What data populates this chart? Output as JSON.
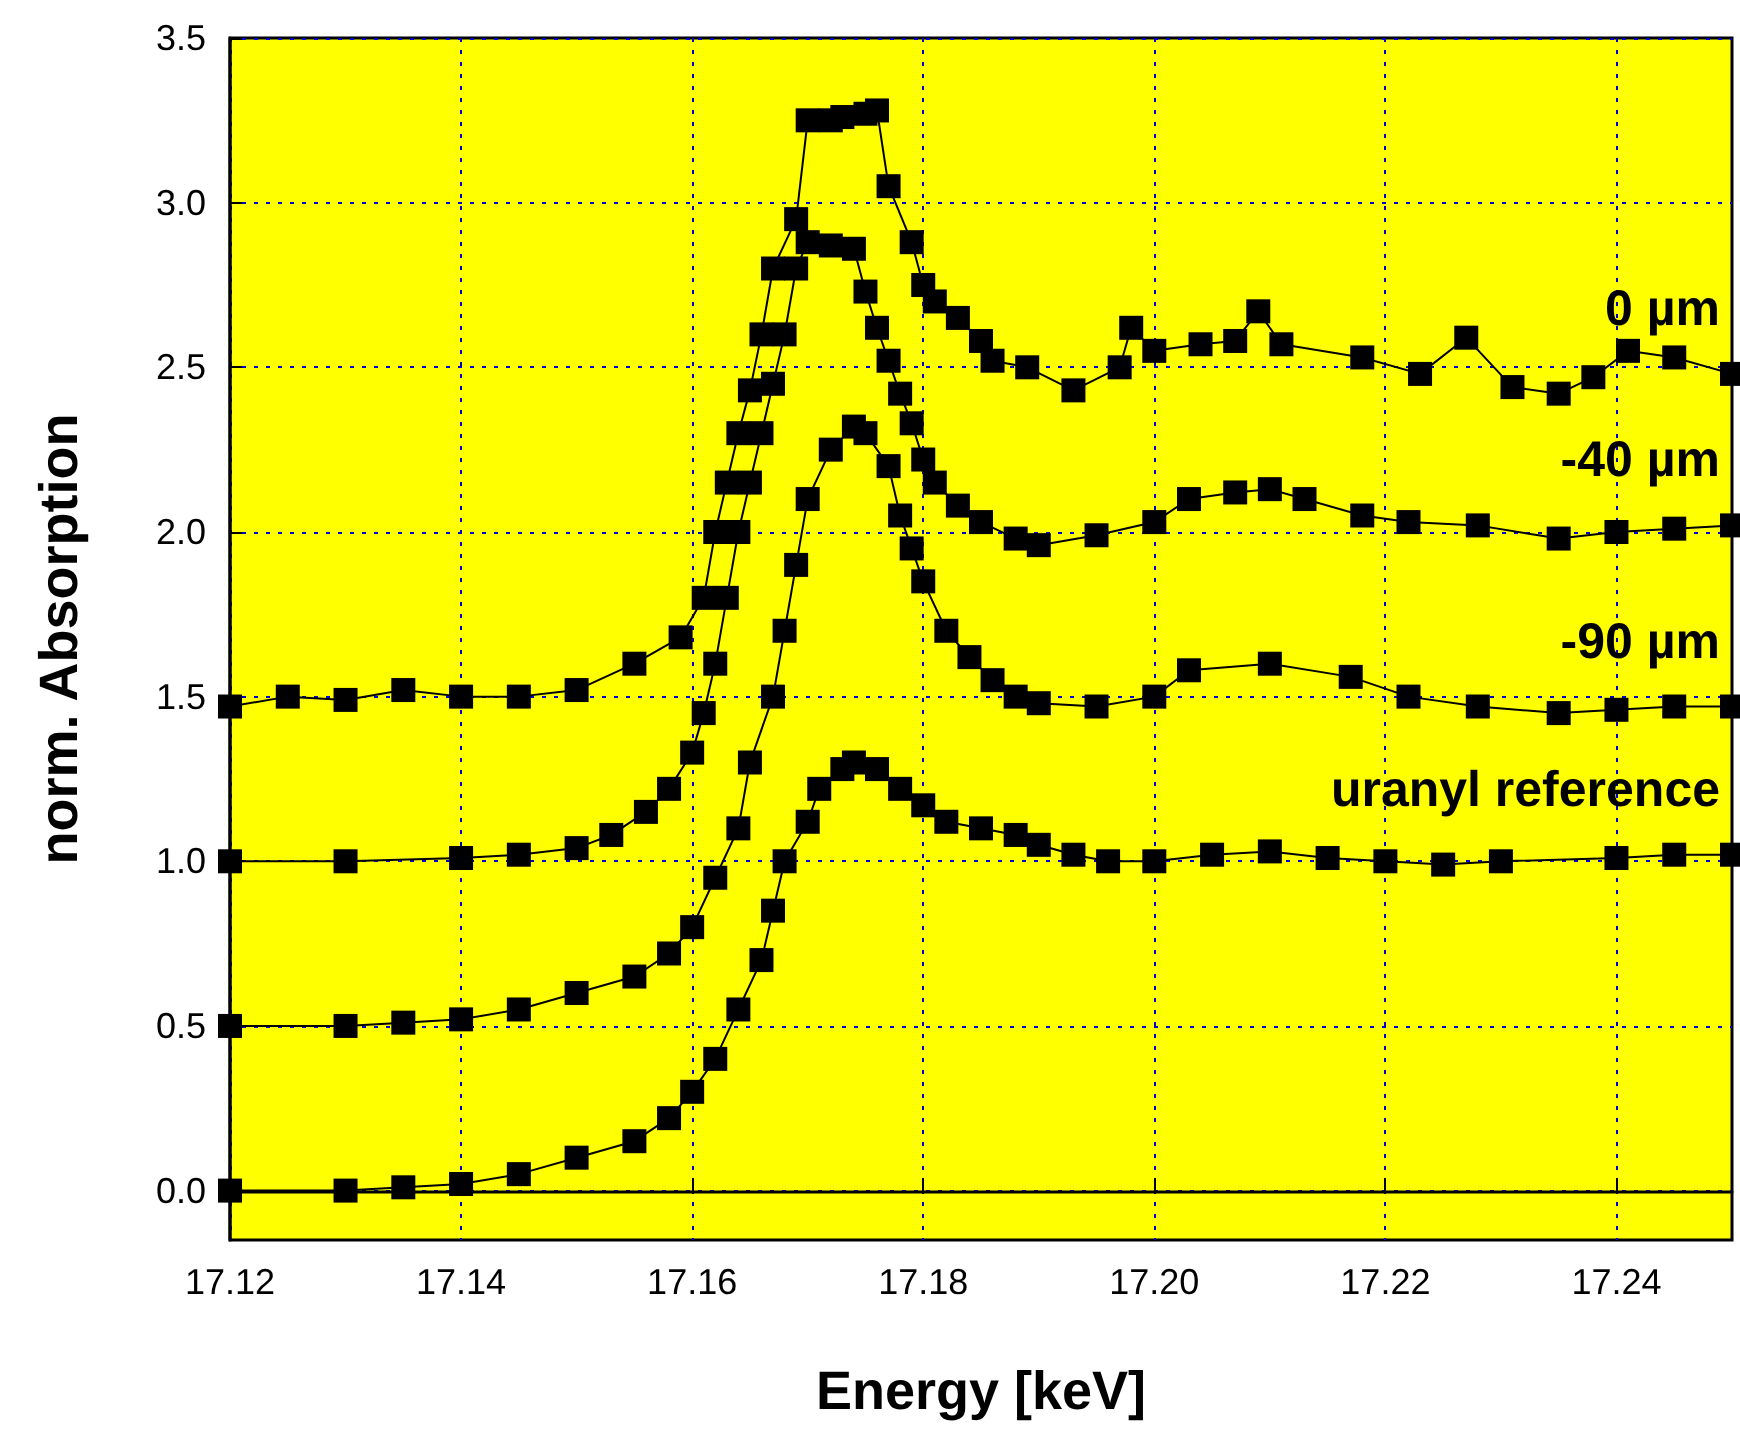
{
  "chart_data": {
    "type": "line",
    "xlabel": "Energy [keV]",
    "ylabel": "norm. Absorption",
    "xlim": [
      17.12,
      17.25
    ],
    "ylim": [
      -0.15,
      3.5
    ],
    "xticks": [
      {
        "value": 17.12,
        "label": "17.12"
      },
      {
        "value": 17.14,
        "label": "17.14"
      },
      {
        "value": 17.16,
        "label": "17.16"
      },
      {
        "value": 17.18,
        "label": "17.18"
      },
      {
        "value": 17.2,
        "label": "17.20"
      },
      {
        "value": 17.22,
        "label": "17.22"
      },
      {
        "value": 17.24,
        "label": "17.24"
      }
    ],
    "yticks": [
      {
        "value": 0,
        "label": "0.0"
      },
      {
        "value": 0.5,
        "label": "0.5"
      },
      {
        "value": 1,
        "label": "1.0"
      },
      {
        "value": 1.5,
        "label": "1.5"
      },
      {
        "value": 2,
        "label": "2.0"
      },
      {
        "value": 2.5,
        "label": "2.5"
      },
      {
        "value": 3,
        "label": "3.0"
      },
      {
        "value": 3.5,
        "label": "3.5"
      }
    ],
    "grid": true,
    "legend": false,
    "marker": "square",
    "line_style": "solid",
    "series": [
      {
        "name": "0 µm",
        "color": "#000000",
        "x": [
          17.12,
          17.125,
          17.13,
          17.135,
          17.14,
          17.145,
          17.15,
          17.155,
          17.159,
          17.161,
          17.162,
          17.163,
          17.164,
          17.165,
          17.166,
          17.167,
          17.169,
          17.17,
          17.172,
          17.173,
          17.175,
          17.176,
          17.177,
          17.179,
          17.18,
          17.181,
          17.183,
          17.185,
          17.186,
          17.189,
          17.193,
          17.197,
          17.198,
          17.2,
          17.204,
          17.207,
          17.209,
          17.211,
          17.218,
          17.223,
          17.227,
          17.231,
          17.235,
          17.238,
          17.241,
          17.245,
          17.25
        ],
        "values": [
          1.47,
          1.5,
          1.49,
          1.52,
          1.5,
          1.5,
          1.52,
          1.6,
          1.68,
          1.8,
          2.0,
          2.15,
          2.3,
          2.43,
          2.6,
          2.8,
          2.95,
          3.25,
          3.25,
          3.26,
          3.27,
          3.28,
          3.05,
          2.88,
          2.75,
          2.7,
          2.65,
          2.58,
          2.52,
          2.5,
          2.43,
          2.5,
          2.62,
          2.55,
          2.57,
          2.58,
          2.67,
          2.57,
          2.53,
          2.48,
          2.59,
          2.44,
          2.42,
          2.47,
          2.55,
          2.53,
          2.48
        ]
      },
      {
        "name": "-40 µm",
        "color": "#000000",
        "x": [
          17.12,
          17.13,
          17.14,
          17.145,
          17.15,
          17.153,
          17.156,
          17.158,
          17.16,
          17.161,
          17.162,
          17.163,
          17.164,
          17.165,
          17.166,
          17.167,
          17.168,
          17.169,
          17.17,
          17.172,
          17.174,
          17.175,
          17.176,
          17.177,
          17.178,
          17.179,
          17.18,
          17.181,
          17.183,
          17.185,
          17.188,
          17.19,
          17.195,
          17.2,
          17.203,
          17.207,
          17.21,
          17.213,
          17.218,
          17.222,
          17.228,
          17.235,
          17.24,
          17.245,
          17.25
        ],
        "values": [
          1.0,
          1.0,
          1.01,
          1.02,
          1.04,
          1.08,
          1.15,
          1.22,
          1.33,
          1.45,
          1.6,
          1.8,
          2.0,
          2.15,
          2.3,
          2.45,
          2.6,
          2.8,
          2.88,
          2.87,
          2.86,
          2.73,
          2.62,
          2.52,
          2.42,
          2.33,
          2.22,
          2.15,
          2.08,
          2.03,
          1.98,
          1.96,
          1.99,
          2.03,
          2.1,
          2.12,
          2.13,
          2.1,
          2.05,
          2.03,
          2.02,
          1.98,
          2.0,
          2.01,
          2.02
        ]
      },
      {
        "name": "-90 µm",
        "color": "#000000",
        "x": [
          17.12,
          17.13,
          17.135,
          17.14,
          17.145,
          17.15,
          17.155,
          17.158,
          17.16,
          17.162,
          17.164,
          17.165,
          17.167,
          17.168,
          17.169,
          17.17,
          17.172,
          17.174,
          17.175,
          17.177,
          17.178,
          17.179,
          17.18,
          17.182,
          17.184,
          17.186,
          17.188,
          17.19,
          17.195,
          17.2,
          17.203,
          17.21,
          17.217,
          17.222,
          17.228,
          17.235,
          17.24,
          17.245,
          17.25
        ],
        "values": [
          0.5,
          0.5,
          0.51,
          0.52,
          0.55,
          0.6,
          0.65,
          0.72,
          0.8,
          0.95,
          1.1,
          1.3,
          1.5,
          1.7,
          1.9,
          2.1,
          2.25,
          2.32,
          2.3,
          2.2,
          2.05,
          1.95,
          1.85,
          1.7,
          1.62,
          1.55,
          1.5,
          1.48,
          1.47,
          1.5,
          1.58,
          1.6,
          1.56,
          1.5,
          1.47,
          1.45,
          1.46,
          1.47,
          1.47
        ]
      },
      {
        "name": "uranyl reference",
        "color": "#000000",
        "x": [
          17.12,
          17.13,
          17.135,
          17.14,
          17.145,
          17.15,
          17.155,
          17.158,
          17.16,
          17.162,
          17.164,
          17.166,
          17.167,
          17.168,
          17.17,
          17.171,
          17.173,
          17.174,
          17.176,
          17.178,
          17.18,
          17.182,
          17.185,
          17.188,
          17.19,
          17.193,
          17.196,
          17.2,
          17.205,
          17.21,
          17.215,
          17.22,
          17.225,
          17.23,
          17.24,
          17.245,
          17.25
        ],
        "values": [
          0.0,
          0.0,
          0.01,
          0.02,
          0.05,
          0.1,
          0.15,
          0.22,
          0.3,
          0.4,
          0.55,
          0.7,
          0.85,
          1.0,
          1.12,
          1.22,
          1.28,
          1.3,
          1.28,
          1.22,
          1.17,
          1.12,
          1.1,
          1.08,
          1.05,
          1.02,
          1.0,
          1.0,
          1.02,
          1.03,
          1.01,
          1.0,
          0.99,
          1.0,
          1.01,
          1.02,
          1.02
        ]
      }
    ]
  }
}
